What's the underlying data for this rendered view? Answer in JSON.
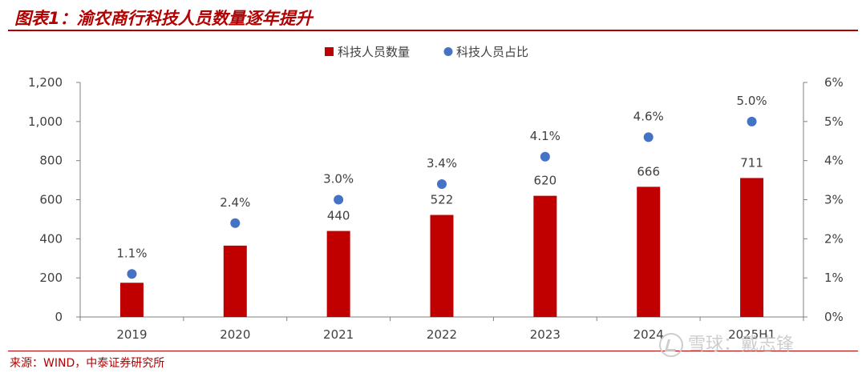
{
  "header": {
    "title": "图表1：渝农商行科技人员数量逐年提升"
  },
  "footer": {
    "source": "来源：WIND，中泰证券研究所"
  },
  "watermark": {
    "text": "雪球：戴志锋"
  },
  "chart_data": {
    "type": "bar",
    "categories": [
      "2019",
      "2020",
      "2021",
      "2022",
      "2023",
      "2024",
      "2025H1"
    ],
    "series": [
      {
        "name": "科技人员数量",
        "type": "bar",
        "axis": "left",
        "color": "#c00000",
        "values": [
          175,
          365,
          440,
          522,
          620,
          666,
          711
        ],
        "data_labels": [
          "",
          "",
          "440",
          "522",
          "620",
          "666",
          "711"
        ]
      },
      {
        "name": "科技人员占比",
        "type": "scatter",
        "axis": "right",
        "color": "#4472c4",
        "values": [
          1.1,
          2.4,
          3.0,
          3.4,
          4.1,
          4.6,
          5.0
        ],
        "data_labels": [
          "1.1%",
          "2.4%",
          "3.0%",
          "3.4%",
          "4.1%",
          "4.6%",
          "5.0%"
        ]
      }
    ],
    "y_left": {
      "ylim": [
        0,
        1200
      ],
      "ticks": [
        "0",
        "200",
        "400",
        "600",
        "800",
        "1,000",
        "1,200"
      ]
    },
    "y_right": {
      "ylim": [
        0,
        6
      ],
      "ticks": [
        "0%",
        "1%",
        "2%",
        "3%",
        "4%",
        "5%",
        "6%"
      ]
    },
    "grid": false,
    "legend": "top-center"
  }
}
